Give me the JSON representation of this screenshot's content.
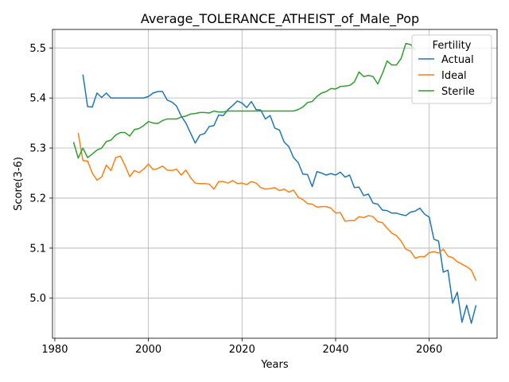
{
  "chart_data": {
    "type": "line",
    "title": "Average_TOLERANCE_ATHEIST_of_Male_Pop",
    "xlabel": "Years",
    "ylabel": "Score(3-6)",
    "xlim": [
      1979.5,
      2074.5
    ],
    "ylim": [
      4.92,
      5.537
    ],
    "xticks": [
      1980,
      2000,
      2020,
      2040,
      2060
    ],
    "yticks": [
      5.0,
      5.1,
      5.2,
      5.3,
      5.4,
      5.5
    ],
    "grid": true,
    "legend": {
      "title": "Fertility",
      "placement": "top-right"
    },
    "series": [
      {
        "name": "Actual",
        "color": "#1f77b4",
        "x": [
          1986,
          1987,
          1988,
          1989,
          1990,
          1991,
          1992,
          1993,
          1994,
          1995,
          1996,
          1997,
          1998,
          1999,
          2000,
          2001,
          2002,
          2003,
          2004,
          2005,
          2006,
          2007,
          2008,
          2009,
          2010,
          2011,
          2012,
          2013,
          2014,
          2015,
          2016,
          2017,
          2018,
          2019,
          2020,
          2021,
          2022,
          2023,
          2024,
          2025,
          2026,
          2027,
          2028,
          2029,
          2030,
          2031,
          2032,
          2033,
          2034,
          2035,
          2036,
          2037,
          2038,
          2039,
          2040,
          2041,
          2042,
          2043,
          2044,
          2045,
          2046,
          2047,
          2048,
          2049,
          2050,
          2051,
          2052,
          2053,
          2054,
          2055,
          2056,
          2057,
          2058,
          2059,
          2060,
          2061,
          2062,
          2063,
          2064,
          2065,
          2066,
          2067,
          2068,
          2069,
          2070
        ],
        "values": [
          5.447,
          5.383,
          5.382,
          5.41,
          5.401,
          5.41,
          5.4,
          5.4,
          5.4,
          5.4,
          5.4,
          5.4,
          5.4,
          5.4,
          5.403,
          5.41,
          5.413,
          5.413,
          5.396,
          5.392,
          5.384,
          5.364,
          5.35,
          5.33,
          5.31,
          5.326,
          5.329,
          5.343,
          5.345,
          5.366,
          5.365,
          5.377,
          5.385,
          5.394,
          5.39,
          5.381,
          5.393,
          5.377,
          5.376,
          5.358,
          5.365,
          5.34,
          5.336,
          5.312,
          5.303,
          5.281,
          5.271,
          5.248,
          5.247,
          5.223,
          5.253,
          5.25,
          5.246,
          5.249,
          5.246,
          5.252,
          5.242,
          5.246,
          5.221,
          5.222,
          5.205,
          5.208,
          5.19,
          5.188,
          5.176,
          5.175,
          5.17,
          5.17,
          5.167,
          5.165,
          5.172,
          5.174,
          5.18,
          5.168,
          5.162,
          5.118,
          5.114,
          5.052,
          5.056,
          4.99,
          5.012,
          4.952,
          4.986,
          4.95,
          4.986
        ]
      },
      {
        "name": "Ideal",
        "color": "#ff7f0e",
        "x": [
          1985,
          1986,
          1987,
          1988,
          1989,
          1990,
          1991,
          1992,
          1993,
          1994,
          1995,
          1996,
          1997,
          1998,
          1999,
          2000,
          2001,
          2002,
          2003,
          2004,
          2005,
          2006,
          2007,
          2008,
          2009,
          2010,
          2011,
          2012,
          2013,
          2014,
          2015,
          2016,
          2017,
          2018,
          2019,
          2020,
          2021,
          2022,
          2023,
          2024,
          2025,
          2026,
          2027,
          2028,
          2029,
          2030,
          2031,
          2032,
          2033,
          2034,
          2035,
          2036,
          2037,
          2038,
          2039,
          2040,
          2041,
          2042,
          2043,
          2044,
          2045,
          2046,
          2047,
          2048,
          2049,
          2050,
          2051,
          2052,
          2053,
          2054,
          2055,
          2056,
          2057,
          2058,
          2059,
          2060,
          2061,
          2062,
          2063,
          2064,
          2065,
          2066,
          2067,
          2068,
          2069,
          2070
        ],
        "values": [
          5.33,
          5.275,
          5.274,
          5.25,
          5.236,
          5.242,
          5.266,
          5.255,
          5.281,
          5.284,
          5.265,
          5.243,
          5.255,
          5.251,
          5.258,
          5.268,
          5.257,
          5.259,
          5.264,
          5.256,
          5.255,
          5.258,
          5.246,
          5.256,
          5.241,
          5.23,
          5.229,
          5.229,
          5.228,
          5.218,
          5.233,
          5.233,
          5.23,
          5.235,
          5.229,
          5.23,
          5.227,
          5.233,
          5.23,
          5.221,
          5.218,
          5.219,
          5.221,
          5.215,
          5.218,
          5.212,
          5.216,
          5.202,
          5.197,
          5.189,
          5.188,
          5.182,
          5.183,
          5.183,
          5.18,
          5.17,
          5.171,
          5.154,
          5.155,
          5.155,
          5.163,
          5.161,
          5.165,
          5.163,
          5.153,
          5.151,
          5.14,
          5.13,
          5.125,
          5.114,
          5.098,
          5.094,
          5.08,
          5.083,
          5.083,
          5.091,
          5.093,
          5.09,
          5.098,
          5.084,
          5.081,
          5.073,
          5.068,
          5.063,
          5.056,
          5.035
        ]
      },
      {
        "name": "Sterile",
        "color": "#2ca02c",
        "x": [
          1984,
          1985,
          1986,
          1987,
          1988,
          1989,
          1990,
          1991,
          1992,
          1993,
          1994,
          1995,
          1996,
          1997,
          1998,
          1999,
          2000,
          2001,
          2002,
          2003,
          2004,
          2005,
          2006,
          2007,
          2008,
          2009,
          2010,
          2011,
          2012,
          2013,
          2014,
          2015,
          2016,
          2017,
          2018,
          2019,
          2020,
          2021,
          2022,
          2023,
          2024,
          2025,
          2026,
          2027,
          2028,
          2029,
          2030,
          2031,
          2032,
          2033,
          2034,
          2035,
          2036,
          2037,
          2038,
          2039,
          2040,
          2041,
          2042,
          2043,
          2044,
          2045,
          2046,
          2047,
          2048,
          2049,
          2050,
          2051,
          2052,
          2053,
          2054,
          2055,
          2056,
          2057
        ],
        "values": [
          5.312,
          5.28,
          5.3,
          5.281,
          5.288,
          5.296,
          5.3,
          5.313,
          5.316,
          5.326,
          5.331,
          5.331,
          5.324,
          5.337,
          5.339,
          5.345,
          5.353,
          5.35,
          5.349,
          5.355,
          5.358,
          5.358,
          5.358,
          5.362,
          5.364,
          5.368,
          5.369,
          5.371,
          5.371,
          5.37,
          5.374,
          5.372,
          5.372,
          5.374,
          5.374,
          5.374,
          5.374,
          5.374,
          5.374,
          5.374,
          5.374,
          5.374,
          5.374,
          5.374,
          5.374,
          5.374,
          5.374,
          5.374,
          5.377,
          5.382,
          5.391,
          5.393,
          5.403,
          5.41,
          5.413,
          5.419,
          5.418,
          5.423,
          5.424,
          5.425,
          5.432,
          5.452,
          5.443,
          5.445,
          5.443,
          5.428,
          5.449,
          5.474,
          5.466,
          5.466,
          5.479,
          5.509,
          5.507,
          5.496
        ]
      }
    ]
  }
}
